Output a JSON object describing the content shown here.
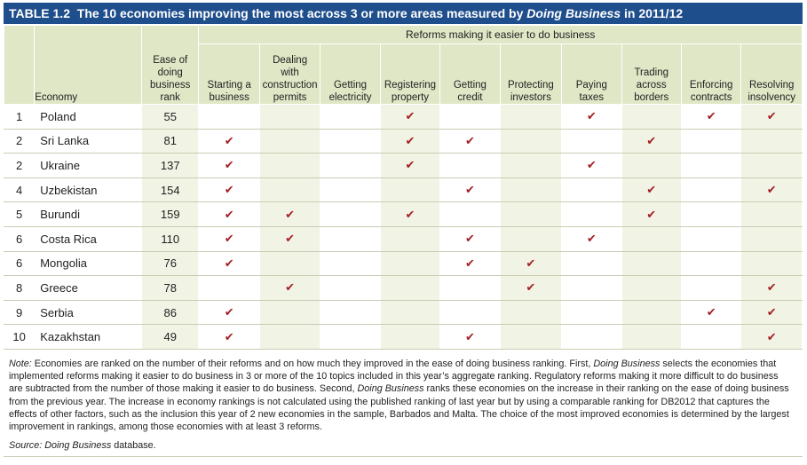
{
  "title": {
    "prefix": "TABLE 1.2",
    "text_before": "The 10 economies improving the most across 3 or more areas measured by ",
    "emphasis": "Doing Business",
    "text_after": " in 2011/12"
  },
  "header": {
    "group_label": "Reforms making it easier to do business",
    "economy": "Economy",
    "rank_lines": [
      "Ease of",
      "doing",
      "business",
      "rank"
    ],
    "reform_columns": [
      [
        "Starting a",
        "business"
      ],
      [
        "Dealing",
        "with",
        "construction",
        "permits"
      ],
      [
        "Getting",
        "electricity"
      ],
      [
        "Registering",
        "property"
      ],
      [
        "Getting",
        "credit"
      ],
      [
        "Protecting",
        "investors"
      ],
      [
        "Paying",
        "taxes"
      ],
      [
        "Trading",
        "across",
        "borders"
      ],
      [
        "Enforcing",
        "contracts"
      ],
      [
        "Resolving",
        "insolvency"
      ]
    ]
  },
  "check_symbol": "✔",
  "rows": [
    {
      "num": "1",
      "economy": "Poland",
      "rank": "55",
      "checks": [
        0,
        0,
        0,
        1,
        0,
        0,
        1,
        0,
        1,
        1
      ]
    },
    {
      "num": "2",
      "economy": "Sri Lanka",
      "rank": "81",
      "checks": [
        1,
        0,
        0,
        1,
        1,
        0,
        0,
        1,
        0,
        0
      ]
    },
    {
      "num": "2",
      "economy": "Ukraine",
      "rank": "137",
      "checks": [
        1,
        0,
        0,
        1,
        0,
        0,
        1,
        0,
        0,
        0
      ]
    },
    {
      "num": "4",
      "economy": "Uzbekistan",
      "rank": "154",
      "checks": [
        1,
        0,
        0,
        0,
        1,
        0,
        0,
        1,
        0,
        1
      ]
    },
    {
      "num": "5",
      "economy": "Burundi",
      "rank": "159",
      "checks": [
        1,
        1,
        0,
        1,
        0,
        0,
        0,
        1,
        0,
        0
      ]
    },
    {
      "num": "6",
      "economy": "Costa Rica",
      "rank": "110",
      "checks": [
        1,
        1,
        0,
        0,
        1,
        0,
        1,
        0,
        0,
        0
      ]
    },
    {
      "num": "6",
      "economy": "Mongolia",
      "rank": "76",
      "checks": [
        1,
        0,
        0,
        0,
        1,
        1,
        0,
        0,
        0,
        0
      ]
    },
    {
      "num": "8",
      "economy": "Greece",
      "rank": "78",
      "checks": [
        0,
        1,
        0,
        0,
        0,
        1,
        0,
        0,
        0,
        1
      ]
    },
    {
      "num": "9",
      "economy": "Serbia",
      "rank": "86",
      "checks": [
        1,
        0,
        0,
        0,
        0,
        0,
        0,
        0,
        1,
        1
      ]
    },
    {
      "num": "10",
      "economy": "Kazakhstan",
      "rank": "49",
      "checks": [
        1,
        0,
        0,
        0,
        1,
        0,
        0,
        0,
        0,
        1
      ]
    }
  ],
  "note": {
    "label": "Note:",
    "parts": [
      " Economies are ranked on the number of their reforms and on how much they improved in the ease of doing business ranking. First, ",
      "Doing Business",
      " selects the economies that implemented reforms making it easier to do business in 3 or more of the 10 topics included in this year’s aggregate ranking. Regulatory reforms making it more difficult to do business are subtracted from the number of those making it easier to do business. Second, ",
      "Doing Business",
      " ranks these economies on the increase in their ranking on the ease of doing business from the previous year. The increase in economy rankings is not calculated using the published ranking of last year but by using a comparable ranking for DB2012 that captures the effects of other factors, such as the inclusion this year of 2 new economies in the sample, Barbados and Malta. The choice of the most improved economies is determined by the largest improvement in rankings, among those economies with at least 3 reforms."
    ]
  },
  "source": {
    "label": "Source:",
    "emphasis": "Doing Business",
    "text": " database."
  },
  "colors": {
    "title_bg": "#1f4e8c",
    "header_bg": "#dfe7c6",
    "alt_cell_bg": "#f1f4e5",
    "check": "#a31f24",
    "rule": "#c9cdb4"
  }
}
